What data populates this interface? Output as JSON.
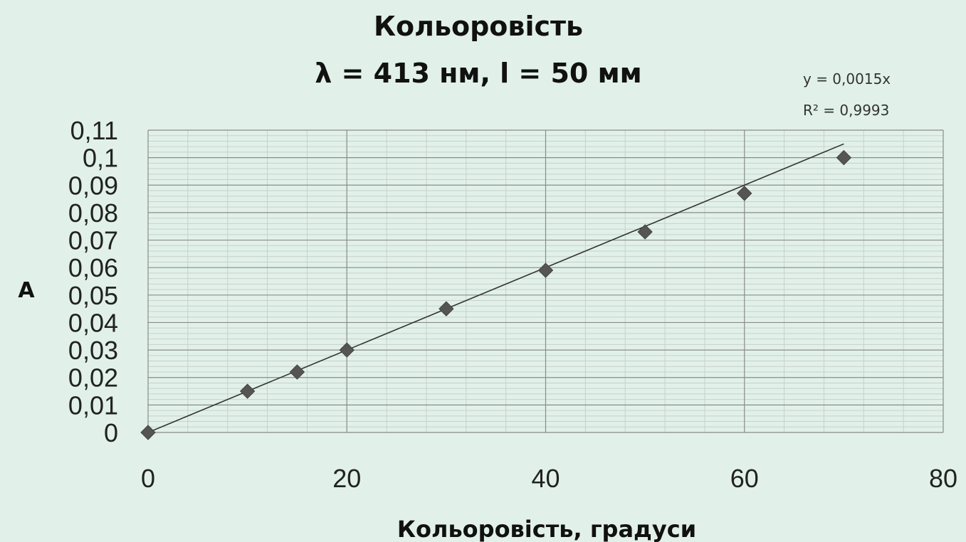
{
  "chart_data": {
    "type": "scatter",
    "title": "Кольоровість",
    "subtitle": "λ = 413 нм, l = 50 мм",
    "xlabel": "Кольоровість, градуси",
    "ylabel": "A",
    "xlim": [
      0,
      80
    ],
    "ylim": [
      0,
      0.11
    ],
    "x_ticks": [
      0,
      20,
      40,
      60,
      80
    ],
    "x_tick_labels": [
      "0",
      "20",
      "40",
      "60",
      "80"
    ],
    "y_ticks": [
      0,
      0.01,
      0.02,
      0.03,
      0.04,
      0.05,
      0.06,
      0.07,
      0.08,
      0.09,
      0.1,
      0.11
    ],
    "y_tick_labels": [
      "0",
      "0,01",
      "0,02",
      "0,03",
      "0,04",
      "0,05",
      "0,06",
      "0,07",
      "0,08",
      "0,09",
      "0,1",
      "0,11"
    ],
    "grid": true,
    "series": [
      {
        "marker": "diamond",
        "x": [
          0,
          10,
          15,
          20,
          30,
          40,
          50,
          60,
          70
        ],
        "y": [
          0,
          0.015,
          0.022,
          0.03,
          0.045,
          0.059,
          0.073,
          0.087,
          0.1
        ]
      }
    ],
    "trendline": {
      "type": "linear",
      "slope": 0.0015,
      "intercept": 0,
      "x_range": [
        0,
        70
      ],
      "equation": "y = 0,0015x",
      "r_squared": "R² = 0,9993"
    },
    "colors": {
      "background": "#e1f1ea",
      "marker": "#555555",
      "trendline": "#333333",
      "grid_major": "#8a8a8a",
      "grid_minor": "#c8d0cc"
    }
  }
}
